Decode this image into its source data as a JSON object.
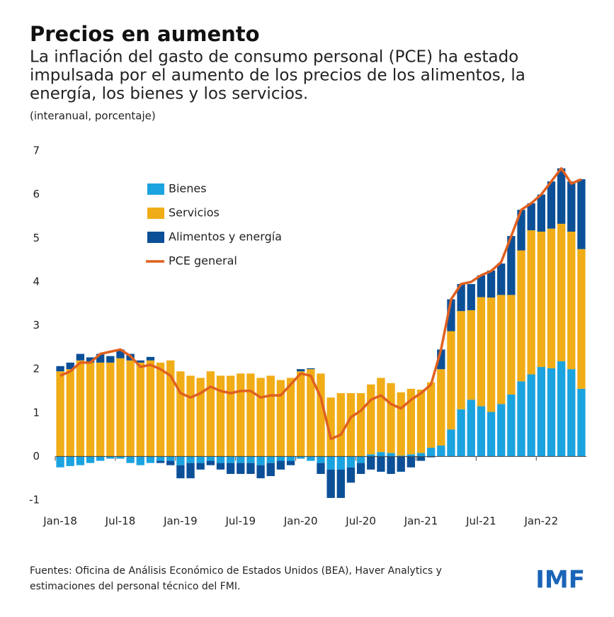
{
  "chart_data": {
    "type": "bar",
    "stacked": true,
    "title": "Precios en aumento",
    "subtitle": [
      "La inflación del gasto de consumo personal (PCE) ha estado",
      "impulsada por el aumento de los precios de los alimentos, la",
      "energía, los bienes y los servicios."
    ],
    "unit_note": "(interanual, porcentaje)",
    "source": [
      "Fuentes: Oficina de Análisis Económico de Estados Unidos (BEA), Haver Analytics y",
      "estimaciones del personal técnico del FMI."
    ],
    "logo": "IMF",
    "categories": [
      "Jan-18",
      null,
      null,
      null,
      null,
      null,
      "Jul-18",
      null,
      null,
      null,
      null,
      null,
      "Jan-19",
      null,
      null,
      null,
      null,
      null,
      "Jul-19",
      null,
      null,
      null,
      null,
      null,
      "Jan-20",
      null,
      null,
      null,
      null,
      null,
      "Jul-20",
      null,
      null,
      null,
      null,
      null,
      "Jan-21",
      null,
      null,
      null,
      null,
      null,
      "Jul-21",
      null,
      null,
      null,
      null,
      null,
      "Jan-22",
      null,
      null,
      null,
      null
    ],
    "series": [
      {
        "name": "Bienes",
        "type": "bar",
        "color": "#1ba3e0",
        "values": [
          -0.25,
          -0.22,
          -0.2,
          -0.15,
          -0.1,
          -0.05,
          -0.05,
          -0.15,
          -0.2,
          -0.15,
          -0.1,
          -0.1,
          -0.2,
          -0.15,
          -0.15,
          -0.1,
          -0.15,
          -0.15,
          -0.15,
          -0.15,
          -0.2,
          -0.15,
          -0.1,
          -0.1,
          -0.05,
          -0.1,
          -0.15,
          -0.3,
          -0.3,
          -0.25,
          -0.15,
          0.05,
          0.1,
          0.08,
          0.02,
          0.05,
          0.08,
          0.2,
          0.25,
          0.62,
          1.08,
          1.3,
          1.15,
          1.02,
          1.2,
          1.42,
          1.72,
          1.88,
          2.05,
          2.02,
          2.18,
          2.0,
          1.55
        ]
      },
      {
        "name": "Servicios",
        "type": "bar",
        "color": "#f0ad17",
        "values": [
          1.95,
          2.0,
          2.2,
          2.15,
          2.15,
          2.15,
          2.25,
          2.2,
          2.15,
          2.2,
          2.15,
          2.2,
          1.95,
          1.85,
          1.8,
          1.95,
          1.85,
          1.85,
          1.9,
          1.9,
          1.8,
          1.85,
          1.75,
          1.8,
          1.95,
          2.0,
          1.9,
          1.35,
          1.45,
          1.45,
          1.45,
          1.6,
          1.7,
          1.6,
          1.45,
          1.5,
          1.45,
          1.5,
          1.75,
          2.25,
          2.25,
          2.05,
          2.5,
          2.62,
          2.5,
          2.28,
          3.0,
          3.3,
          3.1,
          3.2,
          3.15,
          3.15,
          3.2
        ]
      },
      {
        "name": "Alimentos y energía",
        "type": "bar",
        "color": "#0b4f97",
        "values": [
          0.12,
          0.15,
          0.15,
          0.12,
          0.2,
          0.15,
          0.2,
          0.15,
          0.05,
          0.08,
          -0.05,
          -0.1,
          -0.3,
          -0.35,
          -0.15,
          -0.1,
          -0.15,
          -0.25,
          -0.25,
          -0.25,
          -0.3,
          -0.3,
          -0.2,
          -0.1,
          0.05,
          0.02,
          -0.25,
          -0.65,
          -0.65,
          -0.35,
          -0.25,
          -0.3,
          -0.35,
          -0.4,
          -0.35,
          -0.25,
          -0.1,
          -0.02,
          0.45,
          0.73,
          0.62,
          0.6,
          0.5,
          0.62,
          0.72,
          1.35,
          0.93,
          0.62,
          0.85,
          1.08,
          1.27,
          1.15,
          1.6
        ]
      },
      {
        "name": "PCE general",
        "type": "line",
        "color": "#e0601f",
        "values": [
          1.85,
          1.95,
          2.15,
          2.15,
          2.35,
          2.4,
          2.45,
          2.3,
          2.05,
          2.1,
          2.0,
          1.85,
          1.45,
          1.35,
          1.45,
          1.6,
          1.5,
          1.45,
          1.5,
          1.5,
          1.35,
          1.4,
          1.4,
          1.65,
          1.9,
          1.85,
          1.35,
          0.4,
          0.5,
          0.9,
          1.05,
          1.3,
          1.4,
          1.2,
          1.1,
          1.3,
          1.45,
          1.65,
          2.45,
          3.6,
          3.95,
          4.0,
          4.15,
          4.25,
          4.45,
          5.05,
          5.65,
          5.8,
          6.0,
          6.3,
          6.6,
          6.25,
          6.35
        ]
      }
    ],
    "ylim": [
      -1,
      7
    ],
    "yticks": [
      -1,
      0,
      1,
      2,
      3,
      4,
      5,
      6,
      7
    ],
    "grid": false
  }
}
